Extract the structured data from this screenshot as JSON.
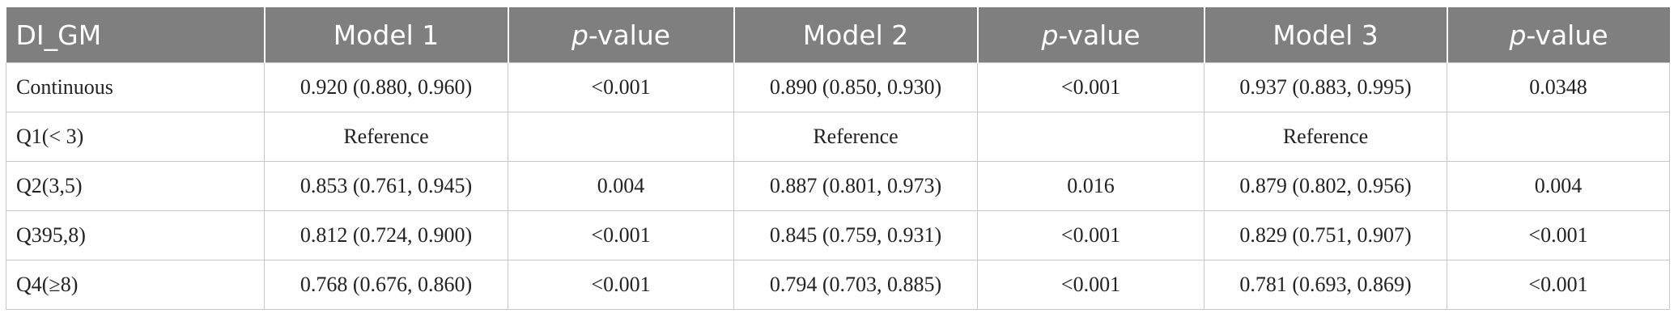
{
  "table": {
    "columns": [
      "DI_GM",
      "Model 1",
      {
        "em": "p",
        "rest": "-value"
      },
      "Model 2",
      {
        "em": "p",
        "rest": "-value"
      },
      "Model 3",
      {
        "em": "p",
        "rest": "-value"
      }
    ],
    "rows": [
      [
        "Continuous",
        "0.920 (0.880, 0.960)",
        "<0.001",
        "0.890 (0.850, 0.930)",
        "<0.001",
        "0.937 (0.883, 0.995)",
        "0.0348"
      ],
      [
        "Q1(< 3)",
        "Reference",
        null,
        "Reference",
        null,
        "Reference",
        null
      ],
      [
        "Q2(3,5)",
        "0.853 (0.761, 0.945)",
        "0.004",
        "0.887 (0.801, 0.973)",
        "0.016",
        "0.879 (0.802, 0.956)",
        "0.004"
      ],
      [
        "Q395,8)",
        "0.812 (0.724, 0.900)",
        "<0.001",
        "0.845 (0.759, 0.931)",
        "<0.001",
        "0.829 (0.751, 0.907)",
        "<0.001"
      ],
      [
        "Q4(≥8)",
        "0.768 (0.676, 0.860)",
        "<0.001",
        "0.794 (0.703, 0.885)",
        "<0.001",
        "0.781 (0.693, 0.869)",
        "<0.001"
      ]
    ]
  }
}
